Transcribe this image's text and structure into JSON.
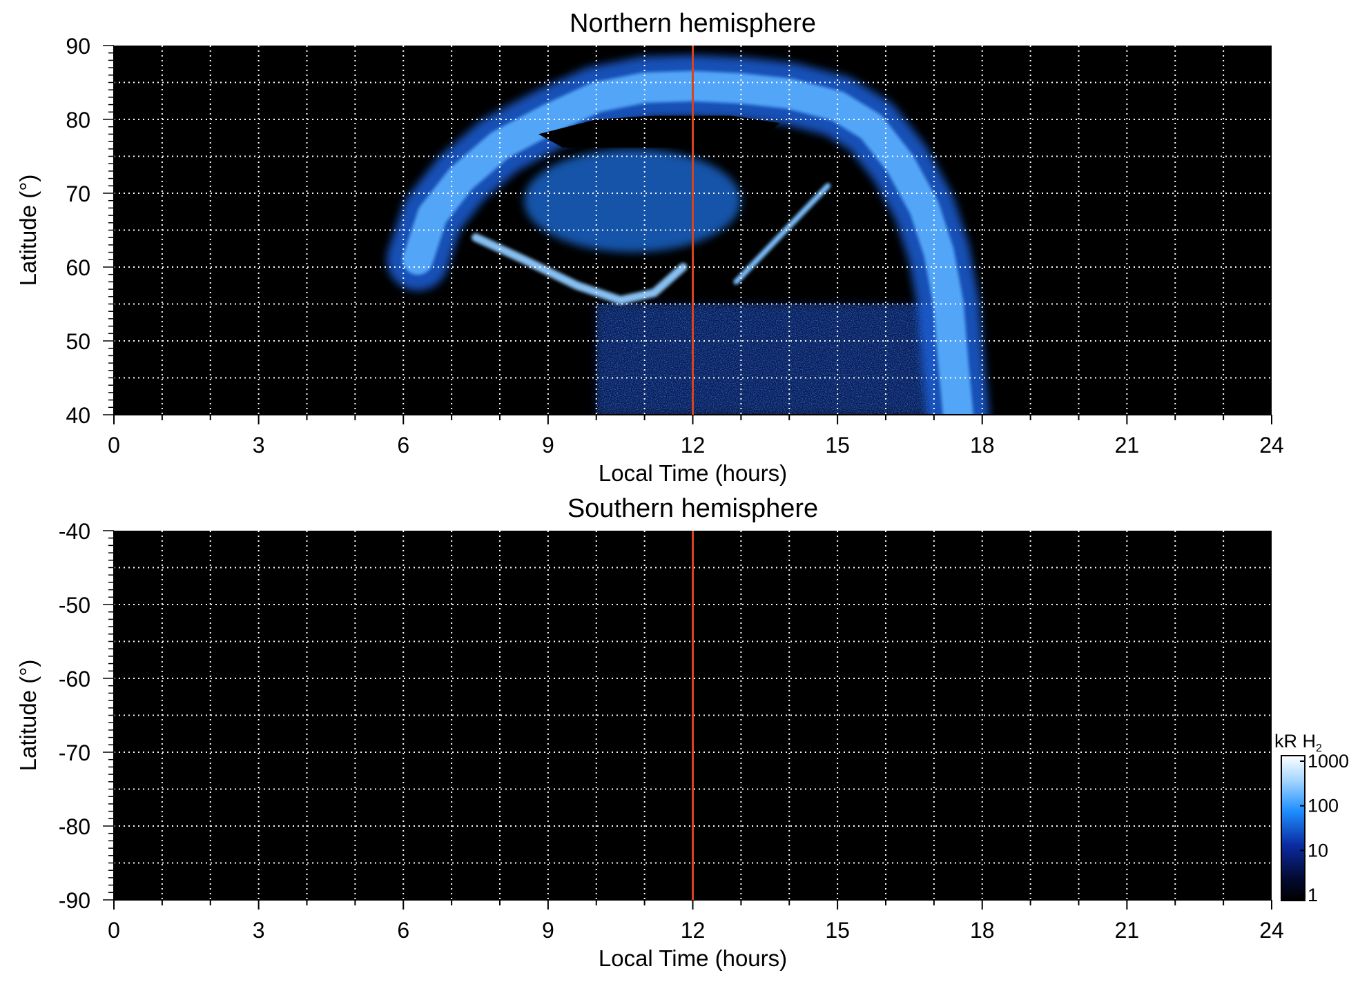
{
  "chart_data": [
    {
      "type": "heatmap",
      "title": "Northern hemisphere",
      "xlabel": "Local Time (hours)",
      "ylabel": "Latitude (°)",
      "xlim": [
        0,
        24
      ],
      "ylim": [
        40,
        90
      ],
      "xticks": [
        0,
        3,
        6,
        9,
        12,
        15,
        18,
        21,
        24
      ],
      "yticks": [
        40,
        50,
        60,
        70,
        80,
        90
      ],
      "grid": true,
      "marker_line": {
        "x": 12,
        "color": "#d9431c"
      },
      "features": {
        "main_oval": [
          [
            6.3,
            61
          ],
          [
            6.6,
            67
          ],
          [
            7.2,
            72
          ],
          [
            8,
            76.5
          ],
          [
            9,
            80
          ],
          [
            10,
            83
          ],
          [
            11,
            84.3
          ],
          [
            12,
            84.5
          ],
          [
            13,
            84.2
          ],
          [
            14,
            83.5
          ],
          [
            15,
            81.8
          ],
          [
            15.7,
            79
          ],
          [
            16.3,
            74
          ],
          [
            16.8,
            68
          ],
          [
            17.1,
            62
          ],
          [
            17.3,
            55
          ],
          [
            17.4,
            47
          ],
          [
            17.5,
            40
          ]
        ],
        "inner_arc": [
          [
            7.5,
            64
          ],
          [
            8.5,
            61
          ],
          [
            9.6,
            57.5
          ],
          [
            10.5,
            55.5
          ],
          [
            11.2,
            56.5
          ],
          [
            11.8,
            60
          ]
        ],
        "polar_cap_patch": {
          "x": [
            8.5,
            13
          ],
          "y": [
            62,
            76
          ]
        },
        "spot_dusk": {
          "x": [
            12.9,
            14.8
          ],
          "y": [
            58,
            71
          ]
        },
        "diffuse_region": {
          "x": [
            10,
            17
          ],
          "y": [
            40,
            55
          ]
        }
      }
    },
    {
      "type": "heatmap",
      "title": "Southern hemisphere",
      "xlabel": "Local Time (hours)",
      "ylabel": "Latitude (°)",
      "xlim": [
        0,
        24
      ],
      "ylim": [
        -90,
        -40
      ],
      "xticks": [
        0,
        3,
        6,
        9,
        12,
        15,
        18,
        21,
        24
      ],
      "yticks": [
        -40,
        -50,
        -60,
        -70,
        -80,
        -90
      ],
      "grid": true,
      "marker_line": {
        "x": 12,
        "color": "#d9431c"
      }
    }
  ],
  "colorbar": {
    "label": "kR H",
    "label_subscript": "2",
    "scale": "log",
    "ticks": [
      "1000",
      "100",
      "10",
      "1"
    ],
    "colors": [
      "#ffffff",
      "#1f8fff",
      "#0a2aa0",
      "#000000"
    ]
  }
}
